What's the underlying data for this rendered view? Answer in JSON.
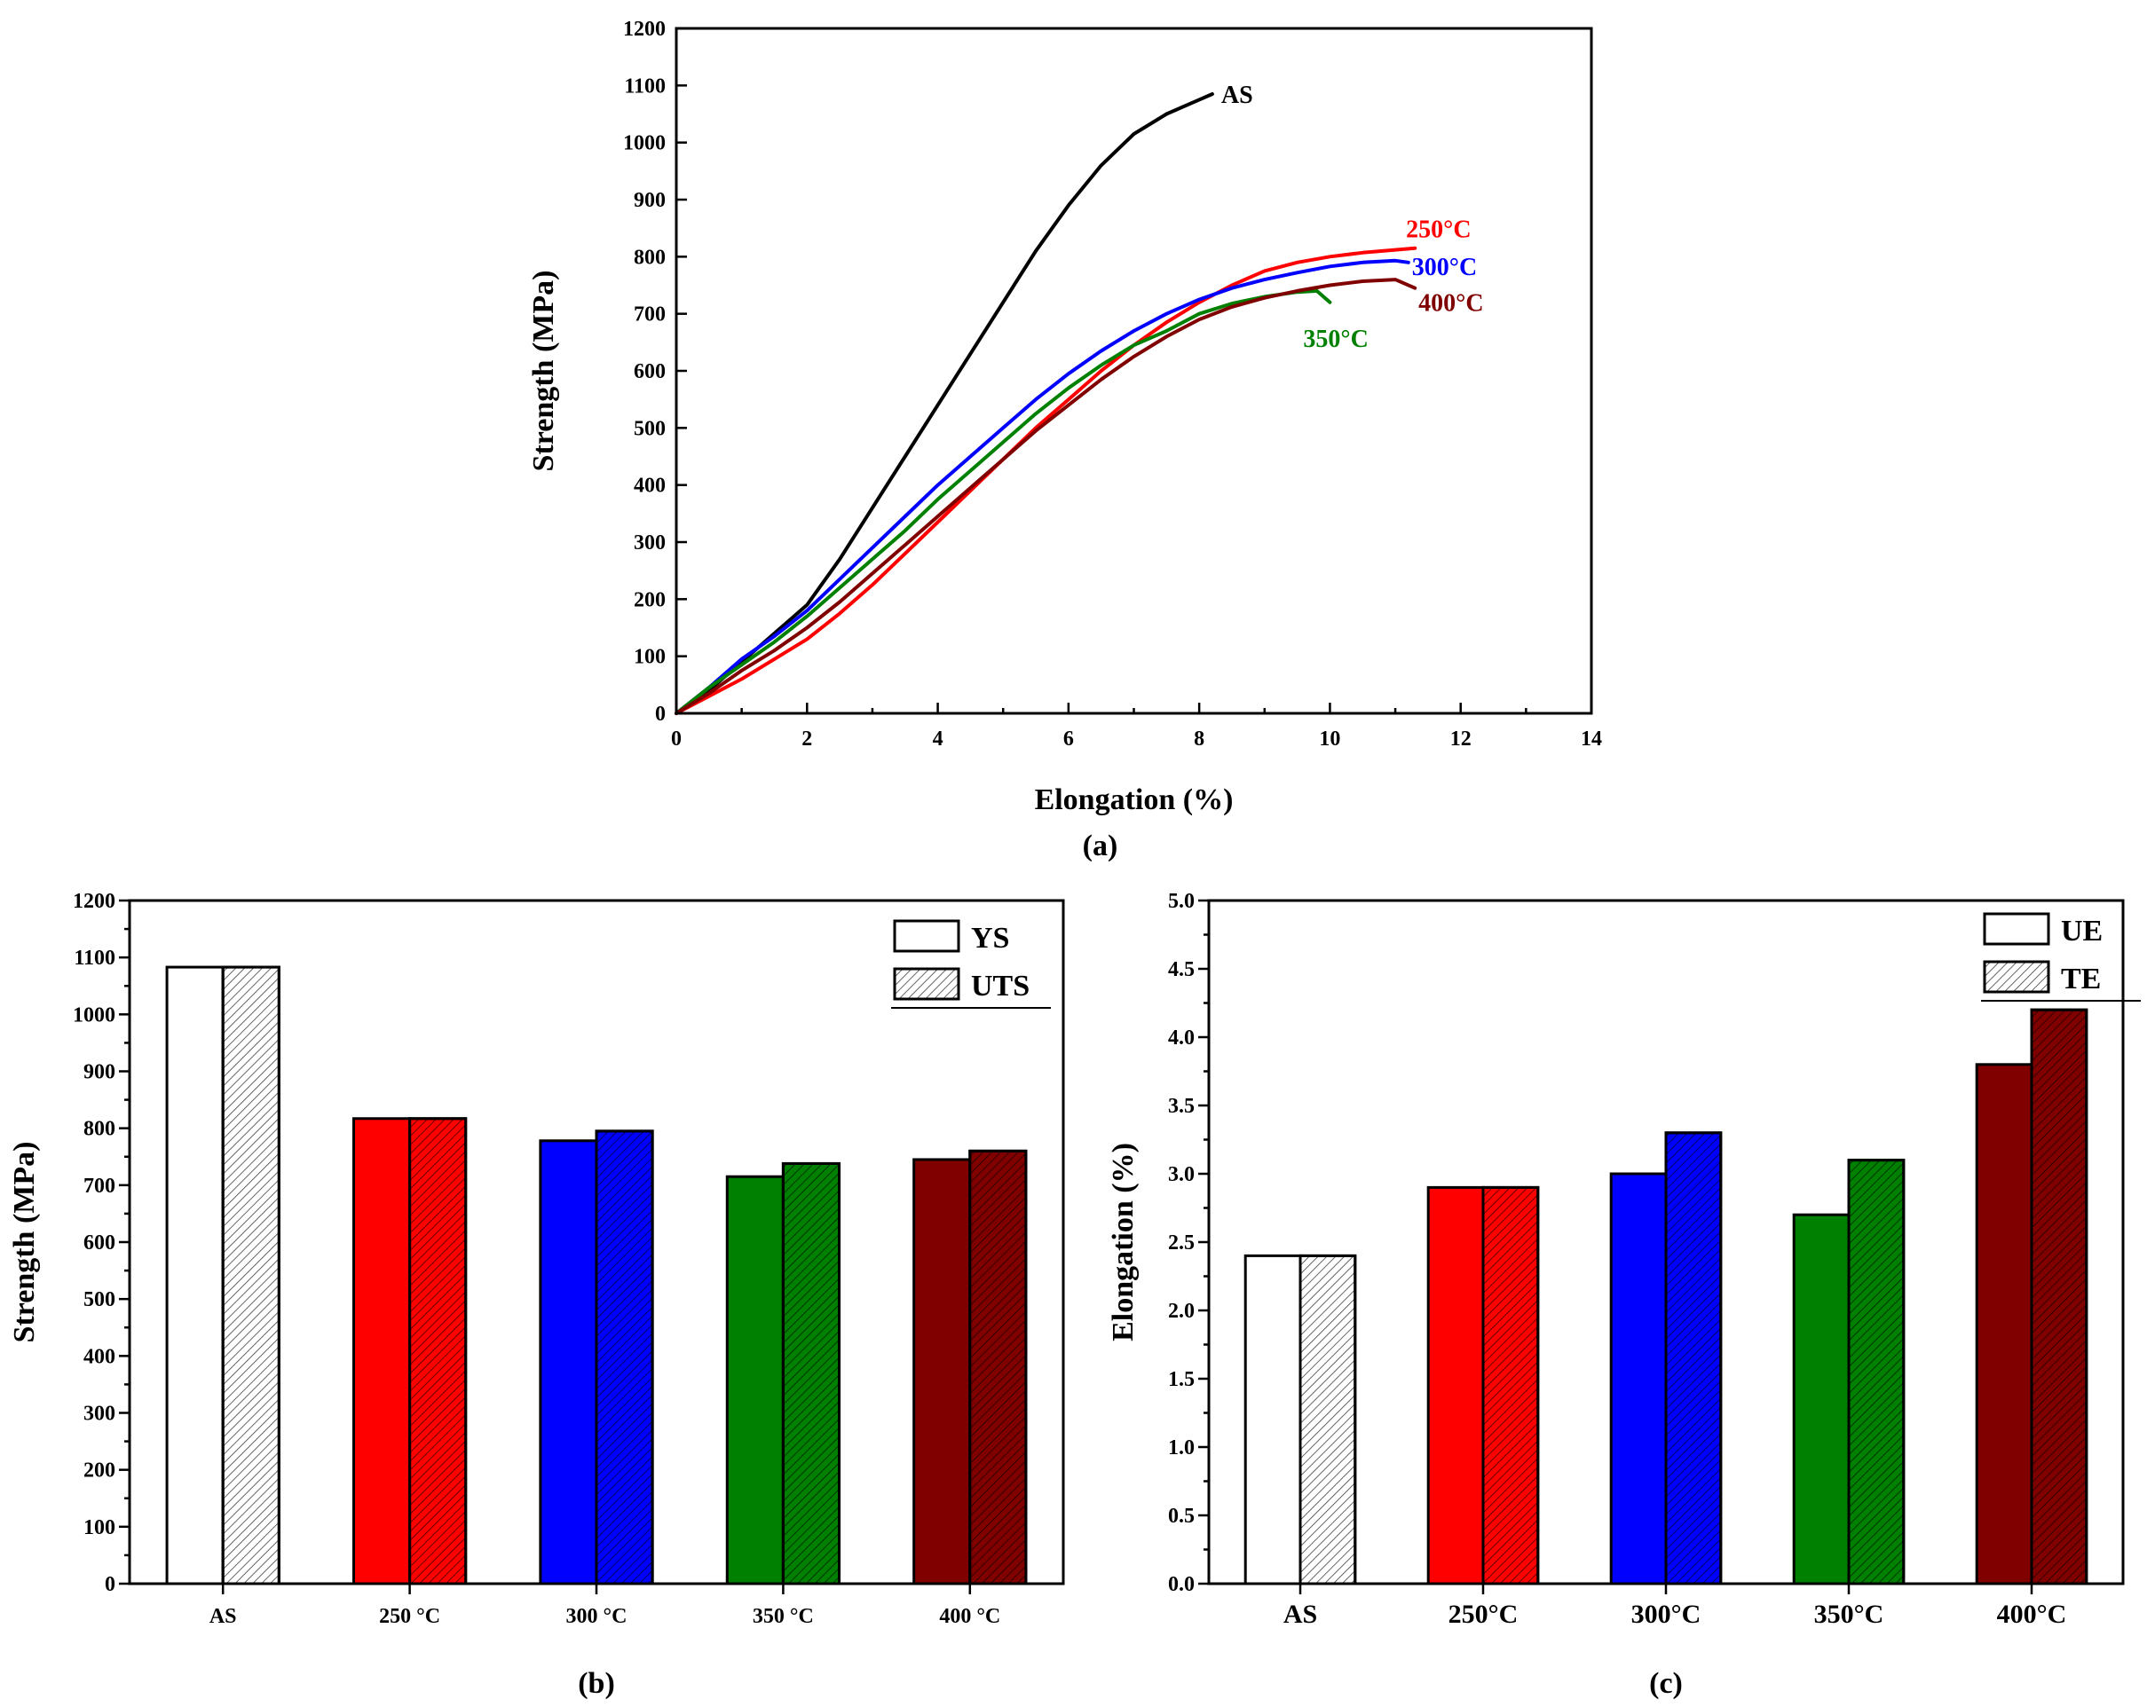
{
  "chart_data": [
    {
      "type": "line",
      "panel": "a",
      "caption": "(a)",
      "xlabel": "Elongation (%)",
      "ylabel": "Strength (MPa)",
      "xlim": [
        0,
        14
      ],
      "ylim": [
        0,
        1200
      ],
      "xticks": [
        0,
        2,
        4,
        6,
        8,
        10,
        12,
        14
      ],
      "yticks": [
        0,
        100,
        200,
        300,
        400,
        500,
        600,
        700,
        800,
        900,
        1000,
        1100,
        1200
      ],
      "series": [
        {
          "name": "AS",
          "label": "AS",
          "color": "#000000",
          "x": [
            0,
            0.5,
            1,
            1.5,
            2,
            2.5,
            3,
            3.5,
            4,
            4.5,
            5,
            5.5,
            6,
            6.5,
            7,
            7.5,
            8,
            8.2
          ],
          "y": [
            0,
            40,
            90,
            140,
            190,
            270,
            360,
            450,
            540,
            630,
            720,
            810,
            890,
            960,
            1015,
            1050,
            1075,
            1085
          ]
        },
        {
          "name": "250°C",
          "label": "250°C",
          "color": "#ff0000",
          "x": [
            0,
            0.5,
            1,
            1.5,
            2,
            2.5,
            3,
            3.5,
            4,
            4.5,
            5,
            5.5,
            6,
            6.5,
            7,
            7.5,
            8,
            8.5,
            9,
            9.5,
            10,
            10.5,
            11,
            11.3
          ],
          "y": [
            0,
            30,
            60,
            95,
            130,
            175,
            225,
            280,
            335,
            390,
            445,
            500,
            550,
            600,
            645,
            685,
            720,
            750,
            775,
            790,
            800,
            807,
            812,
            815
          ]
        },
        {
          "name": "300°C",
          "label": "300°C",
          "color": "#0000ff",
          "x": [
            0,
            0.5,
            1,
            1.5,
            2,
            2.5,
            3,
            3.5,
            4,
            4.5,
            5,
            5.5,
            6,
            6.5,
            7,
            7.5,
            8,
            8.5,
            9,
            9.5,
            10,
            10.5,
            11,
            11.2
          ],
          "y": [
            0,
            45,
            95,
            135,
            180,
            235,
            290,
            345,
            400,
            450,
            500,
            550,
            595,
            635,
            670,
            700,
            725,
            745,
            760,
            772,
            783,
            790,
            793,
            790
          ]
        },
        {
          "name": "350°C",
          "label": "350°C",
          "color": "#008000",
          "x": [
            0,
            0.5,
            1,
            1.5,
            2,
            2.5,
            3,
            3.5,
            4,
            4.5,
            5,
            5.5,
            6,
            6.5,
            7,
            7.5,
            8,
            8.5,
            9,
            9.5,
            9.8,
            10.0
          ],
          "y": [
            0,
            45,
            85,
            125,
            170,
            220,
            270,
            320,
            375,
            425,
            475,
            525,
            570,
            610,
            645,
            670,
            700,
            718,
            730,
            738,
            740,
            720
          ]
        },
        {
          "name": "400°C",
          "label": "400°C",
          "color": "#800000",
          "x": [
            0,
            0.5,
            1,
            1.5,
            2,
            2.5,
            3,
            3.5,
            4,
            4.5,
            5,
            5.5,
            6,
            6.5,
            7,
            7.5,
            8,
            8.5,
            9,
            9.5,
            10,
            10.5,
            11,
            11.3
          ],
          "y": [
            0,
            35,
            75,
            110,
            150,
            195,
            245,
            295,
            345,
            395,
            445,
            495,
            540,
            585,
            625,
            660,
            690,
            712,
            728,
            740,
            750,
            757,
            760,
            745
          ]
        }
      ]
    },
    {
      "type": "bar",
      "panel": "b",
      "caption": "(b)",
      "xlabel": "",
      "ylabel": "Strength (MPa)",
      "ylim": [
        0,
        1200
      ],
      "yticks": [
        0,
        100,
        200,
        300,
        400,
        500,
        600,
        700,
        800,
        900,
        1000,
        1100,
        1200
      ],
      "categories": [
        "AS",
        "250 °C",
        "300 °C",
        "350 °C",
        "400 °C"
      ],
      "category_colors": [
        "#ffffff",
        "#ff0000",
        "#0000ff",
        "#008000",
        "#800000"
      ],
      "legend_position": "top-right",
      "series": [
        {
          "name": "YS",
          "pattern": "solid",
          "values": [
            1083,
            817,
            778,
            715,
            745
          ]
        },
        {
          "name": "UTS",
          "pattern": "hatched",
          "values": [
            1083,
            817,
            795,
            738,
            760
          ]
        }
      ]
    },
    {
      "type": "bar",
      "panel": "c",
      "caption": "(c)",
      "xlabel": "",
      "ylabel": "Elongation (%)",
      "ylim": [
        0,
        5
      ],
      "yticks": [
        "0.0",
        "0.5",
        "1.0",
        "1.5",
        "2.0",
        "2.5",
        "3.0",
        "3.5",
        "4.0",
        "4.5",
        "5.0"
      ],
      "categories": [
        "AS",
        "250°C",
        "300°C",
        "350°C",
        "400°C"
      ],
      "category_colors": [
        "#ffffff",
        "#ff0000",
        "#0000ff",
        "#008000",
        "#800000"
      ],
      "legend_position": "top-right",
      "series": [
        {
          "name": "UE",
          "pattern": "solid",
          "values": [
            2.4,
            2.9,
            3.0,
            2.7,
            3.8
          ]
        },
        {
          "name": "TE",
          "pattern": "hatched",
          "values": [
            2.4,
            2.9,
            3.3,
            3.1,
            4.2
          ]
        }
      ]
    }
  ]
}
